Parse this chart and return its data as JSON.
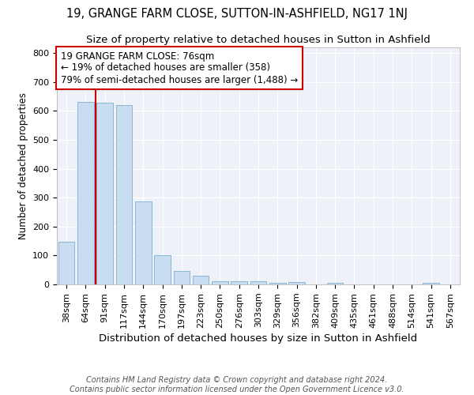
{
  "title": "19, GRANGE FARM CLOSE, SUTTON-IN-ASHFIELD, NG17 1NJ",
  "subtitle": "Size of property relative to detached houses in Sutton in Ashfield",
  "xlabel": "Distribution of detached houses by size in Sutton in Ashfield",
  "ylabel": "Number of detached properties",
  "categories": [
    "38sqm",
    "64sqm",
    "91sqm",
    "117sqm",
    "144sqm",
    "170sqm",
    "197sqm",
    "223sqm",
    "250sqm",
    "276sqm",
    "303sqm",
    "329sqm",
    "356sqm",
    "382sqm",
    "409sqm",
    "435sqm",
    "461sqm",
    "488sqm",
    "514sqm",
    "541sqm",
    "567sqm"
  ],
  "values": [
    148,
    632,
    630,
    620,
    287,
    100,
    47,
    30,
    11,
    12,
    10,
    6,
    7,
    0,
    5,
    0,
    0,
    0,
    0,
    6,
    0
  ],
  "bar_color": "#c8ddf0",
  "bar_edge_color": "#7aaed0",
  "ylim": [
    0,
    820
  ],
  "yticks": [
    0,
    100,
    200,
    300,
    400,
    500,
    600,
    700,
    800
  ],
  "vline_color": "#cc0000",
  "annotation_text": "19 GRANGE FARM CLOSE: 76sqm\n← 19% of detached houses are smaller (358)\n79% of semi-detached houses are larger (1,488) →",
  "annotation_box_color": "#ffffff",
  "annotation_box_edge": "#cc0000",
  "bg_color": "#eef2f8",
  "footer": "Contains HM Land Registry data © Crown copyright and database right 2024.\nContains public sector information licensed under the Open Government Licence v3.0.",
  "title_fontsize": 10.5,
  "subtitle_fontsize": 9.5,
  "xlabel_fontsize": 9.5,
  "ylabel_fontsize": 8.5,
  "tick_fontsize": 8,
  "annotation_fontsize": 8.5,
  "footer_fontsize": 7
}
